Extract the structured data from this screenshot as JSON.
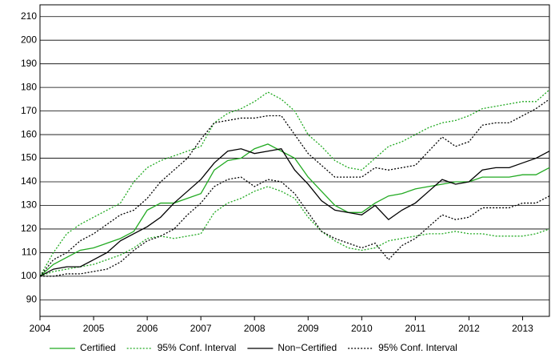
{
  "chart_data": {
    "type": "line",
    "x": [
      2004,
      2004.25,
      2004.5,
      2004.75,
      2005,
      2005.25,
      2005.5,
      2005.75,
      2006,
      2006.25,
      2006.5,
      2006.75,
      2007,
      2007.25,
      2007.5,
      2007.75,
      2008,
      2008.25,
      2008.5,
      2008.75,
      2009,
      2009.25,
      2009.5,
      2009.75,
      2010,
      2010.25,
      2010.5,
      2010.75,
      2011,
      2011.25,
      2011.5,
      2011.75,
      2012,
      2012.25,
      2012.5,
      2012.75,
      2013,
      2013.25,
      2013.5
    ],
    "xlim": [
      2004,
      2013.5
    ],
    "xticks": [
      2004,
      2005,
      2006,
      2007,
      2008,
      2009,
      2010,
      2011,
      2012,
      2013
    ],
    "ylim": [
      83,
      215
    ],
    "yticks": [
      90,
      100,
      110,
      120,
      130,
      140,
      150,
      160,
      170,
      180,
      190,
      200,
      210
    ],
    "grid": true,
    "series": [
      {
        "name": "Certified",
        "color": "#22aa22",
        "style": "solid",
        "values": [
          100,
          105,
          108,
          111,
          112,
          114,
          116,
          119,
          128,
          131,
          131,
          133,
          135,
          145,
          149,
          150,
          154,
          156,
          153,
          150,
          142,
          136,
          130,
          127,
          127,
          131,
          134,
          135,
          137,
          138,
          139,
          140,
          140,
          142,
          142,
          142,
          143,
          143,
          146
        ]
      },
      {
        "name": "95% Conf. Interval",
        "color": "#22aa22",
        "style": "dotted",
        "values": [
          100,
          110,
          118,
          122,
          125,
          128,
          131,
          140,
          146,
          149,
          151,
          153,
          155,
          165,
          169,
          171,
          174,
          178,
          175,
          170,
          160,
          155,
          149,
          146,
          145,
          150,
          155,
          157,
          160,
          163,
          165,
          166,
          168,
          171,
          172,
          173,
          174,
          174,
          179
        ]
      },
      {
        "color": "#22aa22",
        "style": "dotted",
        "values": [
          100,
          102,
          103,
          104,
          105,
          107,
          109,
          112,
          116,
          117,
          116,
          117,
          118,
          127,
          131,
          133,
          136,
          138,
          136,
          133,
          125,
          119,
          115,
          112,
          111,
          112,
          115,
          116,
          117,
          118,
          118,
          119,
          118,
          118,
          117,
          117,
          117,
          118,
          120
        ]
      },
      {
        "name": "Non−Certified",
        "color": "#000000",
        "style": "solid",
        "values": [
          100,
          103,
          104,
          104,
          107,
          110,
          115,
          118,
          121,
          125,
          131,
          136,
          141,
          148,
          153,
          154,
          152,
          153,
          154,
          145,
          139,
          132,
          128,
          127,
          126,
          130,
          124,
          128,
          131,
          136,
          141,
          139,
          140,
          145,
          146,
          146,
          148,
          150,
          153
        ]
      },
      {
        "name": "95% Conf. Interval",
        "color": "#000000",
        "style": "dotted",
        "values": [
          100,
          107,
          110,
          115,
          118,
          122,
          126,
          128,
          133,
          140,
          145,
          150,
          158,
          165,
          166,
          167,
          167,
          168,
          168,
          160,
          152,
          147,
          142,
          142,
          142,
          146,
          145,
          146,
          147,
          153,
          159,
          155,
          157,
          164,
          165,
          165,
          168,
          171,
          175
        ]
      },
      {
        "color": "#000000",
        "style": "dotted",
        "values": [
          100,
          100,
          101,
          101,
          102,
          103,
          106,
          111,
          115,
          117,
          120,
          126,
          131,
          138,
          141,
          142,
          138,
          141,
          140,
          135,
          127,
          119,
          116,
          114,
          112,
          114,
          107,
          113,
          116,
          121,
          126,
          124,
          125,
          129,
          129,
          129,
          131,
          131,
          134
        ]
      }
    ]
  }
}
